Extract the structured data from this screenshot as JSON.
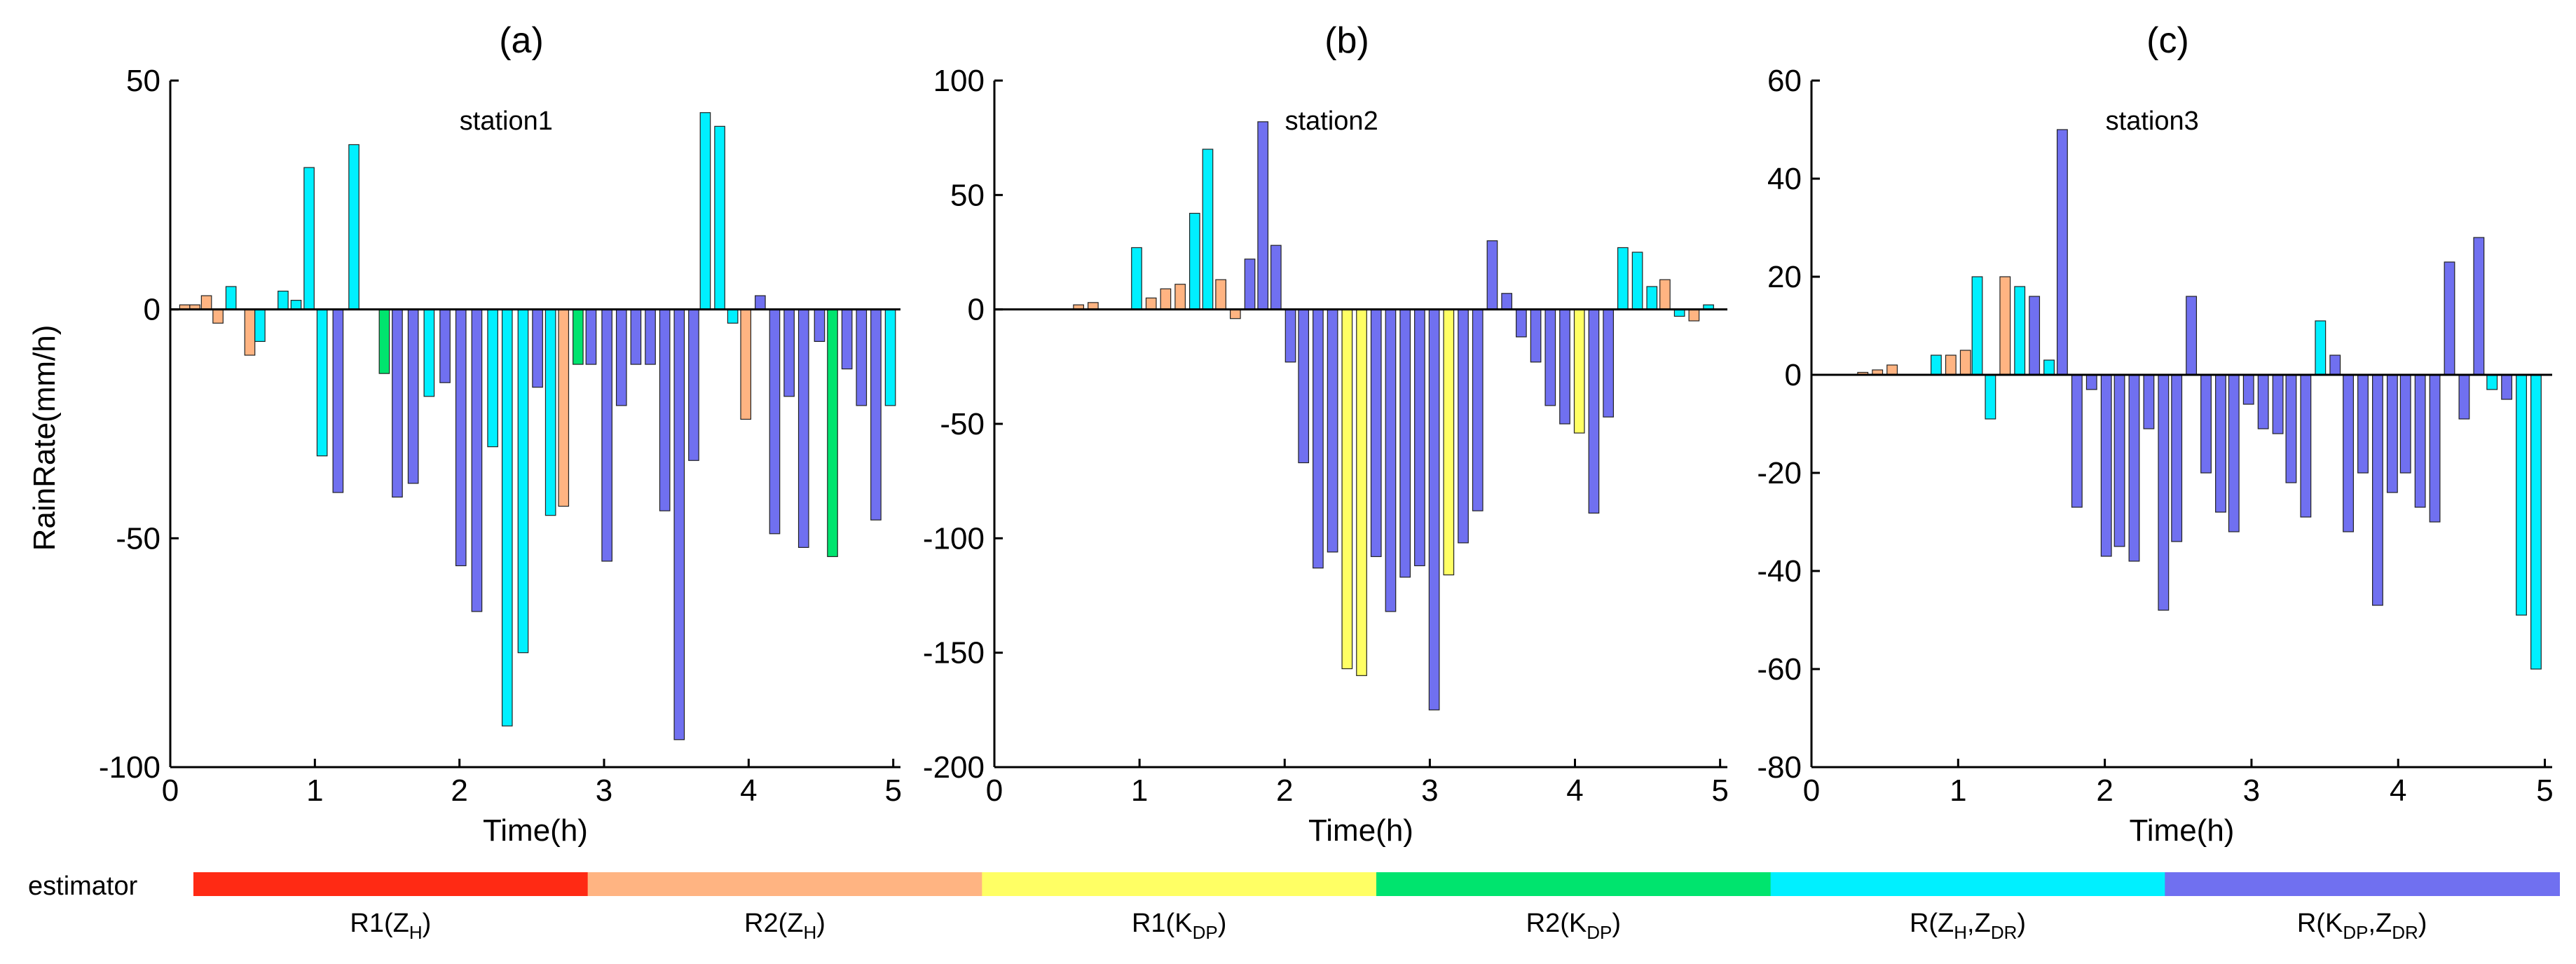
{
  "figure": {
    "ylabel": "RainRate(mm/h)",
    "legend_label": "estimator"
  },
  "estimators": [
    {
      "key": "R1ZH",
      "sym": "R1",
      "subs": [
        "Z",
        "H"
      ],
      "color": "#ff2a14"
    },
    {
      "key": "R2ZH",
      "sym": "R2",
      "subs": [
        "Z",
        "H"
      ],
      "color": "#ffb482"
    },
    {
      "key": "R1KDP",
      "sym": "R1",
      "subs": [
        "K",
        "DP"
      ],
      "color": "#ffff64"
    },
    {
      "key": "R2KDP",
      "sym": "R2",
      "subs": [
        "K",
        "DP"
      ],
      "color": "#00e46e"
    },
    {
      "key": "RZHZDR",
      "sym": "R",
      "subs": [
        "Z",
        "H",
        ",Z",
        "DR"
      ],
      "color": "#00f0ff"
    },
    {
      "key": "RKDPZDR",
      "sym": "R",
      "subs": [
        "K",
        "DP",
        ",Z",
        "DR"
      ],
      "color": "#7070f0"
    }
  ],
  "chart_data": [
    {
      "type": "bar",
      "panel": "(a)",
      "title": "station1",
      "xlabel": "Time(h)",
      "ylabel": "RainRate(mm/h)",
      "xlim": [
        0,
        5.05
      ],
      "ylim": [
        -100,
        50
      ],
      "xticks": [
        0,
        1,
        2,
        3,
        4,
        5
      ],
      "yticks": [
        -100,
        -50,
        0,
        50
      ],
      "bar_width": 0.07,
      "bars": [
        {
          "x": 0.1,
          "y": 1,
          "est": "R2ZH"
        },
        {
          "x": 0.17,
          "y": 1,
          "est": "R2ZH"
        },
        {
          "x": 0.25,
          "y": 3,
          "est": "R2ZH"
        },
        {
          "x": 0.33,
          "y": -3,
          "est": "R2ZH"
        },
        {
          "x": 0.42,
          "y": 5,
          "est": "RZHZDR"
        },
        {
          "x": 0.55,
          "y": -10,
          "est": "R2ZH"
        },
        {
          "x": 0.62,
          "y": -7,
          "est": "RZHZDR"
        },
        {
          "x": 0.78,
          "y": 4,
          "est": "RZHZDR"
        },
        {
          "x": 0.87,
          "y": 2,
          "est": "RZHZDR"
        },
        {
          "x": 0.96,
          "y": 31,
          "est": "RZHZDR"
        },
        {
          "x": 1.05,
          "y": -32,
          "est": "RZHZDR"
        },
        {
          "x": 1.16,
          "y": -40,
          "est": "RKDPZDR"
        },
        {
          "x": 1.27,
          "y": 36,
          "est": "RZHZDR"
        },
        {
          "x": 1.48,
          "y": -14,
          "est": "R2KDP"
        },
        {
          "x": 1.57,
          "y": -41,
          "est": "RKDPZDR"
        },
        {
          "x": 1.68,
          "y": -38,
          "est": "RKDPZDR"
        },
        {
          "x": 1.79,
          "y": -19,
          "est": "RZHZDR"
        },
        {
          "x": 1.9,
          "y": -16,
          "est": "RKDPZDR"
        },
        {
          "x": 2.01,
          "y": -56,
          "est": "RKDPZDR"
        },
        {
          "x": 2.12,
          "y": -66,
          "est": "RKDPZDR"
        },
        {
          "x": 2.23,
          "y": -30,
          "est": "RZHZDR"
        },
        {
          "x": 2.33,
          "y": -91,
          "est": "RZHZDR"
        },
        {
          "x": 2.44,
          "y": -75,
          "est": "RZHZDR"
        },
        {
          "x": 2.54,
          "y": -17,
          "est": "RKDPZDR"
        },
        {
          "x": 2.63,
          "y": -45,
          "est": "RZHZDR"
        },
        {
          "x": 2.72,
          "y": -43,
          "est": "R2ZH"
        },
        {
          "x": 2.82,
          "y": -12,
          "est": "R2KDP"
        },
        {
          "x": 2.91,
          "y": -12,
          "est": "RKDPZDR"
        },
        {
          "x": 3.02,
          "y": -55,
          "est": "RKDPZDR"
        },
        {
          "x": 3.12,
          "y": -21,
          "est": "RKDPZDR"
        },
        {
          "x": 3.22,
          "y": -12,
          "est": "RKDPZDR"
        },
        {
          "x": 3.32,
          "y": -12,
          "est": "RKDPZDR"
        },
        {
          "x": 3.42,
          "y": -44,
          "est": "RKDPZDR"
        },
        {
          "x": 3.52,
          "y": -94,
          "est": "RKDPZDR"
        },
        {
          "x": 3.62,
          "y": -33,
          "est": "RKDPZDR"
        },
        {
          "x": 3.7,
          "y": 43,
          "est": "RZHZDR"
        },
        {
          "x": 3.8,
          "y": 40,
          "est": "RZHZDR"
        },
        {
          "x": 3.89,
          "y": -3,
          "est": "RZHZDR"
        },
        {
          "x": 3.98,
          "y": -24,
          "est": "R2ZH"
        },
        {
          "x": 4.08,
          "y": 3,
          "est": "RKDPZDR"
        },
        {
          "x": 4.18,
          "y": -49,
          "est": "RKDPZDR"
        },
        {
          "x": 4.28,
          "y": -19,
          "est": "RKDPZDR"
        },
        {
          "x": 4.38,
          "y": -52,
          "est": "RKDPZDR"
        },
        {
          "x": 4.49,
          "y": -7,
          "est": "RKDPZDR"
        },
        {
          "x": 4.58,
          "y": -54,
          "est": "R2KDP"
        },
        {
          "x": 4.68,
          "y": -13,
          "est": "RKDPZDR"
        },
        {
          "x": 4.78,
          "y": -21,
          "est": "RKDPZDR"
        },
        {
          "x": 4.88,
          "y": -46,
          "est": "RKDPZDR"
        },
        {
          "x": 4.98,
          "y": -21,
          "est": "RZHZDR"
        }
      ]
    },
    {
      "type": "bar",
      "panel": "(b)",
      "title": "station2",
      "xlabel": "Time(h)",
      "ylabel": "",
      "xlim": [
        0,
        5.05
      ],
      "ylim": [
        -200,
        100
      ],
      "xticks": [
        0,
        1,
        2,
        3,
        4,
        5
      ],
      "yticks": [
        -200,
        -150,
        -100,
        -50,
        0,
        50,
        100
      ],
      "bar_width": 0.07,
      "bars": [
        {
          "x": 0.58,
          "y": 2,
          "est": "R2ZH"
        },
        {
          "x": 0.68,
          "y": 3,
          "est": "R2ZH"
        },
        {
          "x": 0.98,
          "y": 27,
          "est": "RZHZDR"
        },
        {
          "x": 1.08,
          "y": 5,
          "est": "R2ZH"
        },
        {
          "x": 1.18,
          "y": 9,
          "est": "R2ZH"
        },
        {
          "x": 1.28,
          "y": 11,
          "est": "R2ZH"
        },
        {
          "x": 1.38,
          "y": 42,
          "est": "RZHZDR"
        },
        {
          "x": 1.47,
          "y": 70,
          "est": "RZHZDR"
        },
        {
          "x": 1.56,
          "y": 13,
          "est": "R2ZH"
        },
        {
          "x": 1.66,
          "y": -4,
          "est": "R2ZH"
        },
        {
          "x": 1.76,
          "y": 22,
          "est": "RKDPZDR"
        },
        {
          "x": 1.85,
          "y": 82,
          "est": "RKDPZDR"
        },
        {
          "x": 1.94,
          "y": 28,
          "est": "RKDPZDR"
        },
        {
          "x": 2.04,
          "y": -23,
          "est": "RKDPZDR"
        },
        {
          "x": 2.13,
          "y": -67,
          "est": "RKDPZDR"
        },
        {
          "x": 2.23,
          "y": -113,
          "est": "RKDPZDR"
        },
        {
          "x": 2.33,
          "y": -106,
          "est": "RKDPZDR"
        },
        {
          "x": 2.43,
          "y": -157,
          "est": "R1KDP"
        },
        {
          "x": 2.53,
          "y": -160,
          "est": "R1KDP"
        },
        {
          "x": 2.63,
          "y": -108,
          "est": "RKDPZDR"
        },
        {
          "x": 2.73,
          "y": -132,
          "est": "RKDPZDR"
        },
        {
          "x": 2.83,
          "y": -117,
          "est": "RKDPZDR"
        },
        {
          "x": 2.93,
          "y": -112,
          "est": "RKDPZDR"
        },
        {
          "x": 3.03,
          "y": -175,
          "est": "RKDPZDR"
        },
        {
          "x": 3.13,
          "y": -116,
          "est": "R1KDP"
        },
        {
          "x": 3.23,
          "y": -102,
          "est": "RKDPZDR"
        },
        {
          "x": 3.33,
          "y": -88,
          "est": "RKDPZDR"
        },
        {
          "x": 3.43,
          "y": 30,
          "est": "RKDPZDR"
        },
        {
          "x": 3.53,
          "y": 7,
          "est": "RKDPZDR"
        },
        {
          "x": 3.63,
          "y": -12,
          "est": "RKDPZDR"
        },
        {
          "x": 3.73,
          "y": -23,
          "est": "RKDPZDR"
        },
        {
          "x": 3.83,
          "y": -42,
          "est": "RKDPZDR"
        },
        {
          "x": 3.93,
          "y": -50,
          "est": "RKDPZDR"
        },
        {
          "x": 4.03,
          "y": -54,
          "est": "R1KDP"
        },
        {
          "x": 4.13,
          "y": -89,
          "est": "RKDPZDR"
        },
        {
          "x": 4.23,
          "y": -47,
          "est": "RKDPZDR"
        },
        {
          "x": 4.33,
          "y": 27,
          "est": "RZHZDR"
        },
        {
          "x": 4.43,
          "y": 25,
          "est": "RZHZDR"
        },
        {
          "x": 4.53,
          "y": 10,
          "est": "RZHZDR"
        },
        {
          "x": 4.62,
          "y": 13,
          "est": "R2ZH"
        },
        {
          "x": 4.72,
          "y": -3,
          "est": "RZHZDR"
        },
        {
          "x": 4.82,
          "y": -5,
          "est": "R2ZH"
        },
        {
          "x": 4.92,
          "y": 2,
          "est": "RZHZDR"
        }
      ]
    },
    {
      "type": "bar",
      "panel": "(c)",
      "title": "station3",
      "xlabel": "Time(h)",
      "ylabel": "",
      "xlim": [
        0,
        5.05
      ],
      "ylim": [
        -80,
        60
      ],
      "xticks": [
        0,
        1,
        2,
        3,
        4,
        5
      ],
      "yticks": [
        -80,
        -60,
        -40,
        -20,
        0,
        20,
        40,
        60
      ],
      "bar_width": 0.07,
      "bars": [
        {
          "x": 0.35,
          "y": 0.5,
          "est": "R2ZH"
        },
        {
          "x": 0.45,
          "y": 1,
          "est": "R2ZH"
        },
        {
          "x": 0.55,
          "y": 2,
          "est": "R2ZH"
        },
        {
          "x": 0.85,
          "y": 4,
          "est": "RZHZDR"
        },
        {
          "x": 0.95,
          "y": 4,
          "est": "R2ZH"
        },
        {
          "x": 1.05,
          "y": 5,
          "est": "R2ZH"
        },
        {
          "x": 1.13,
          "y": 20,
          "est": "RZHZDR"
        },
        {
          "x": 1.22,
          "y": -9,
          "est": "RZHZDR"
        },
        {
          "x": 1.32,
          "y": 20,
          "est": "R2ZH"
        },
        {
          "x": 1.42,
          "y": 18,
          "est": "RZHZDR"
        },
        {
          "x": 1.52,
          "y": 16,
          "est": "RKDPZDR"
        },
        {
          "x": 1.62,
          "y": 3,
          "est": "RZHZDR"
        },
        {
          "x": 1.71,
          "y": 50,
          "est": "RKDPZDR"
        },
        {
          "x": 1.81,
          "y": -27,
          "est": "RKDPZDR"
        },
        {
          "x": 1.91,
          "y": -3,
          "est": "RKDPZDR"
        },
        {
          "x": 2.01,
          "y": -37,
          "est": "RKDPZDR"
        },
        {
          "x": 2.1,
          "y": -35,
          "est": "RKDPZDR"
        },
        {
          "x": 2.2,
          "y": -38,
          "est": "RKDPZDR"
        },
        {
          "x": 2.3,
          "y": -11,
          "est": "RKDPZDR"
        },
        {
          "x": 2.4,
          "y": -48,
          "est": "RKDPZDR"
        },
        {
          "x": 2.49,
          "y": -34,
          "est": "RKDPZDR"
        },
        {
          "x": 2.59,
          "y": 16,
          "est": "RKDPZDR"
        },
        {
          "x": 2.69,
          "y": -20,
          "est": "RKDPZDR"
        },
        {
          "x": 2.79,
          "y": -28,
          "est": "RKDPZDR"
        },
        {
          "x": 2.88,
          "y": -32,
          "est": "RKDPZDR"
        },
        {
          "x": 2.98,
          "y": -6,
          "est": "RKDPZDR"
        },
        {
          "x": 3.08,
          "y": -11,
          "est": "RKDPZDR"
        },
        {
          "x": 3.18,
          "y": -12,
          "est": "RKDPZDR"
        },
        {
          "x": 3.27,
          "y": -22,
          "est": "RKDPZDR"
        },
        {
          "x": 3.37,
          "y": -29,
          "est": "RKDPZDR"
        },
        {
          "x": 3.47,
          "y": 11,
          "est": "RZHZDR"
        },
        {
          "x": 3.57,
          "y": 4,
          "est": "RKDPZDR"
        },
        {
          "x": 3.66,
          "y": -32,
          "est": "RKDPZDR"
        },
        {
          "x": 3.76,
          "y": -20,
          "est": "RKDPZDR"
        },
        {
          "x": 3.86,
          "y": -47,
          "est": "RKDPZDR"
        },
        {
          "x": 3.96,
          "y": -24,
          "est": "RKDPZDR"
        },
        {
          "x": 4.05,
          "y": -20,
          "est": "RKDPZDR"
        },
        {
          "x": 4.15,
          "y": -27,
          "est": "RKDPZDR"
        },
        {
          "x": 4.25,
          "y": -30,
          "est": "RKDPZDR"
        },
        {
          "x": 4.35,
          "y": 23,
          "est": "RKDPZDR"
        },
        {
          "x": 4.45,
          "y": -9,
          "est": "RKDPZDR"
        },
        {
          "x": 4.55,
          "y": 28,
          "est": "RKDPZDR"
        },
        {
          "x": 4.64,
          "y": -3,
          "est": "RZHZDR"
        },
        {
          "x": 4.74,
          "y": -5,
          "est": "RKDPZDR"
        },
        {
          "x": 4.84,
          "y": -49,
          "est": "RZHZDR"
        },
        {
          "x": 4.94,
          "y": -60,
          "est": "RZHZDR"
        }
      ]
    }
  ]
}
